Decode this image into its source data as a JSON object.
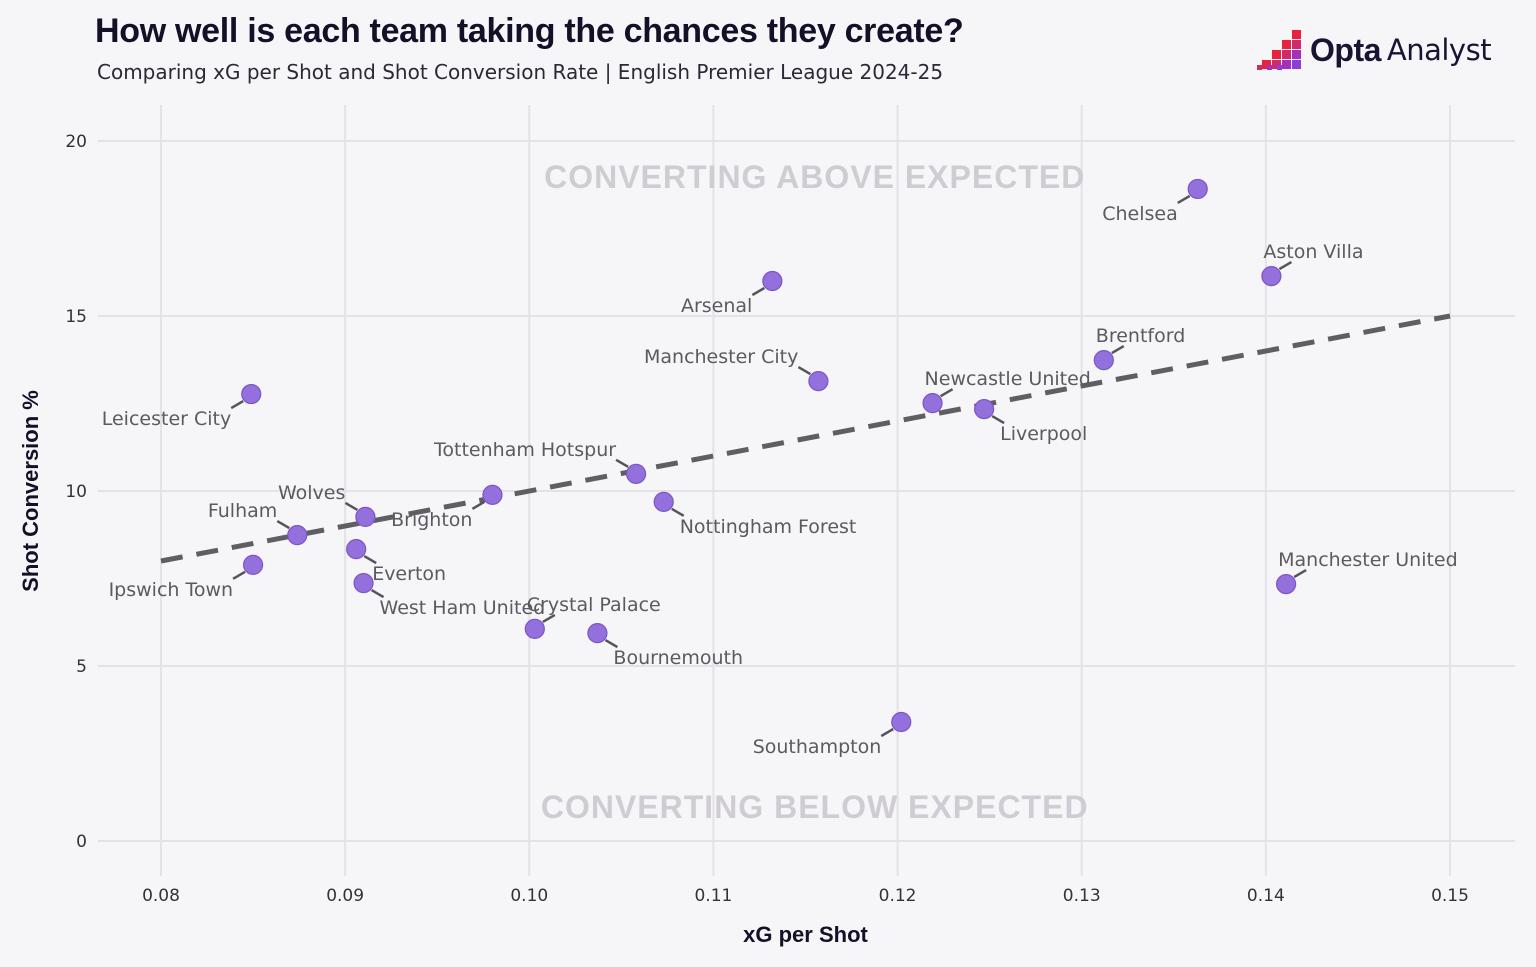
{
  "header": {
    "title": "How well is each team taking the chances they create?",
    "subtitle": "Comparing xG per Shot and Shot Conversion Rate | English Premier League 2024-25"
  },
  "logo": {
    "bold_text": "Opta",
    "text": "Analyst",
    "icon": "opta-pixel-stairs-icon",
    "colors": [
      "#e8233f",
      "#d1296a",
      "#a52fbf",
      "#8b3fd8"
    ]
  },
  "chart_data": {
    "type": "scatter",
    "title": "How well is each team taking the chances they create?",
    "subtitle": "Comparing xG per Shot and Shot Conversion Rate | English Premier League 2024-25",
    "xlabel": "xG per Shot",
    "ylabel": "Shot Conversion %",
    "xlim": [
      0.08,
      0.15
    ],
    "ylim": [
      0,
      20
    ],
    "x_ticks": [
      "0.08",
      "0.09",
      "0.10",
      "0.11",
      "0.12",
      "0.13",
      "0.14",
      "0.15"
    ],
    "y_ticks": [
      "0",
      "5",
      "10",
      "15",
      "20"
    ],
    "grid": true,
    "point_color": "#9370db",
    "trend_line": {
      "style": "dashed",
      "color": "#5f5e62",
      "points": [
        [
          0.08,
          8.0
        ],
        [
          0.15,
          15.0
        ]
      ]
    },
    "annotations": [
      {
        "text": "CONVERTING ABOVE EXPECTED",
        "x": 0.1155,
        "y": 19.0
      },
      {
        "text": "CONVERTING BELOW EXPECTED",
        "x": 0.1155,
        "y": 1.0
      }
    ],
    "points": [
      {
        "team": "Chelsea",
        "x": 0.1363,
        "y": 18.63,
        "label_pos": "bottom-left"
      },
      {
        "team": "Aston Villa",
        "x": 0.1403,
        "y": 16.14,
        "label_pos": "top-right"
      },
      {
        "team": "Arsenal",
        "x": 0.1132,
        "y": 16.0,
        "label_pos": "bottom-left"
      },
      {
        "team": "Brentford",
        "x": 0.1312,
        "y": 13.74,
        "label_pos": "top-right"
      },
      {
        "team": "Manchester City",
        "x": 0.1157,
        "y": 13.14,
        "label_pos": "top-left"
      },
      {
        "team": "Leicester City",
        "x": 0.0849,
        "y": 12.77,
        "label_pos": "bottom-left"
      },
      {
        "team": "Newcastle United",
        "x": 0.1219,
        "y": 12.51,
        "label_pos": "top-right"
      },
      {
        "team": "Liverpool",
        "x": 0.1247,
        "y": 12.34,
        "label_pos": "bottom-right"
      },
      {
        "team": "Tottenham Hotspur",
        "x": 0.1058,
        "y": 10.49,
        "label_pos": "top-left"
      },
      {
        "team": "Nottingham Forest",
        "x": 0.1073,
        "y": 9.69,
        "label_pos": "bottom-right"
      },
      {
        "team": "Brighton",
        "x": 0.098,
        "y": 9.89,
        "label_pos": "bottom-left"
      },
      {
        "team": "Wolves",
        "x": 0.0911,
        "y": 9.26,
        "label_pos": "top-left"
      },
      {
        "team": "Fulham",
        "x": 0.0874,
        "y": 8.74,
        "label_pos": "top-left"
      },
      {
        "team": "Everton",
        "x": 0.0906,
        "y": 8.34,
        "label_pos": "bottom-right"
      },
      {
        "team": "Ipswich Town",
        "x": 0.085,
        "y": 7.89,
        "label_pos": "bottom-left"
      },
      {
        "team": "West Ham United",
        "x": 0.091,
        "y": 7.37,
        "label_pos": "bottom-right"
      },
      {
        "team": "Manchester United",
        "x": 0.1411,
        "y": 7.34,
        "label_pos": "top-right"
      },
      {
        "team": "Crystal Palace",
        "x": 0.1003,
        "y": 6.06,
        "label_pos": "top-right"
      },
      {
        "team": "Bournemouth",
        "x": 0.1037,
        "y": 5.94,
        "label_pos": "bottom-right"
      },
      {
        "team": "Southampton",
        "x": 0.1202,
        "y": 3.4,
        "label_pos": "bottom-left"
      }
    ]
  }
}
